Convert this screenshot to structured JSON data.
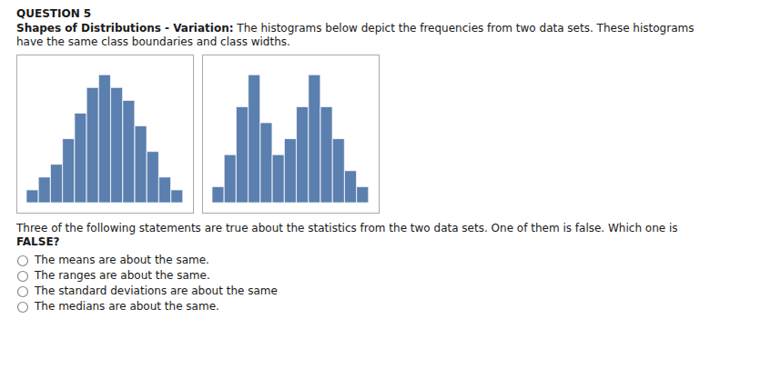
{
  "title": "QUESTION 5",
  "subtitle": "Shapes of Distributions - Variation:",
  "annotations": [
    " The histograms below depict the frequencies from two data sets. These histograms have the same class boundaries and class widths.",
    "Three of the following statements are true about the statistics from the two data sets. One of them is false. Which one is",
    "FALSE?",
    "The means are about the same.",
    "The ranges are about the same.",
    "The standard deviations are about the same",
    "The medians are about the same."
  ],
  "chart_data": [
    {
      "type": "bar",
      "values": [
        1,
        2,
        3,
        5,
        7,
        9,
        10,
        9,
        8,
        6,
        4,
        2,
        1
      ],
      "color": "#5b7faf",
      "ylim": [
        0,
        10.8
      ],
      "tick_labels": false,
      "grid": false
    },
    {
      "type": "bar",
      "values": [
        1,
        3,
        6,
        8,
        5,
        3,
        4,
        6,
        8,
        6,
        4,
        2,
        1
      ],
      "color": "#5b7faf",
      "ylim": [
        0,
        8.64
      ],
      "tick_labels": false,
      "grid": false
    }
  ]
}
